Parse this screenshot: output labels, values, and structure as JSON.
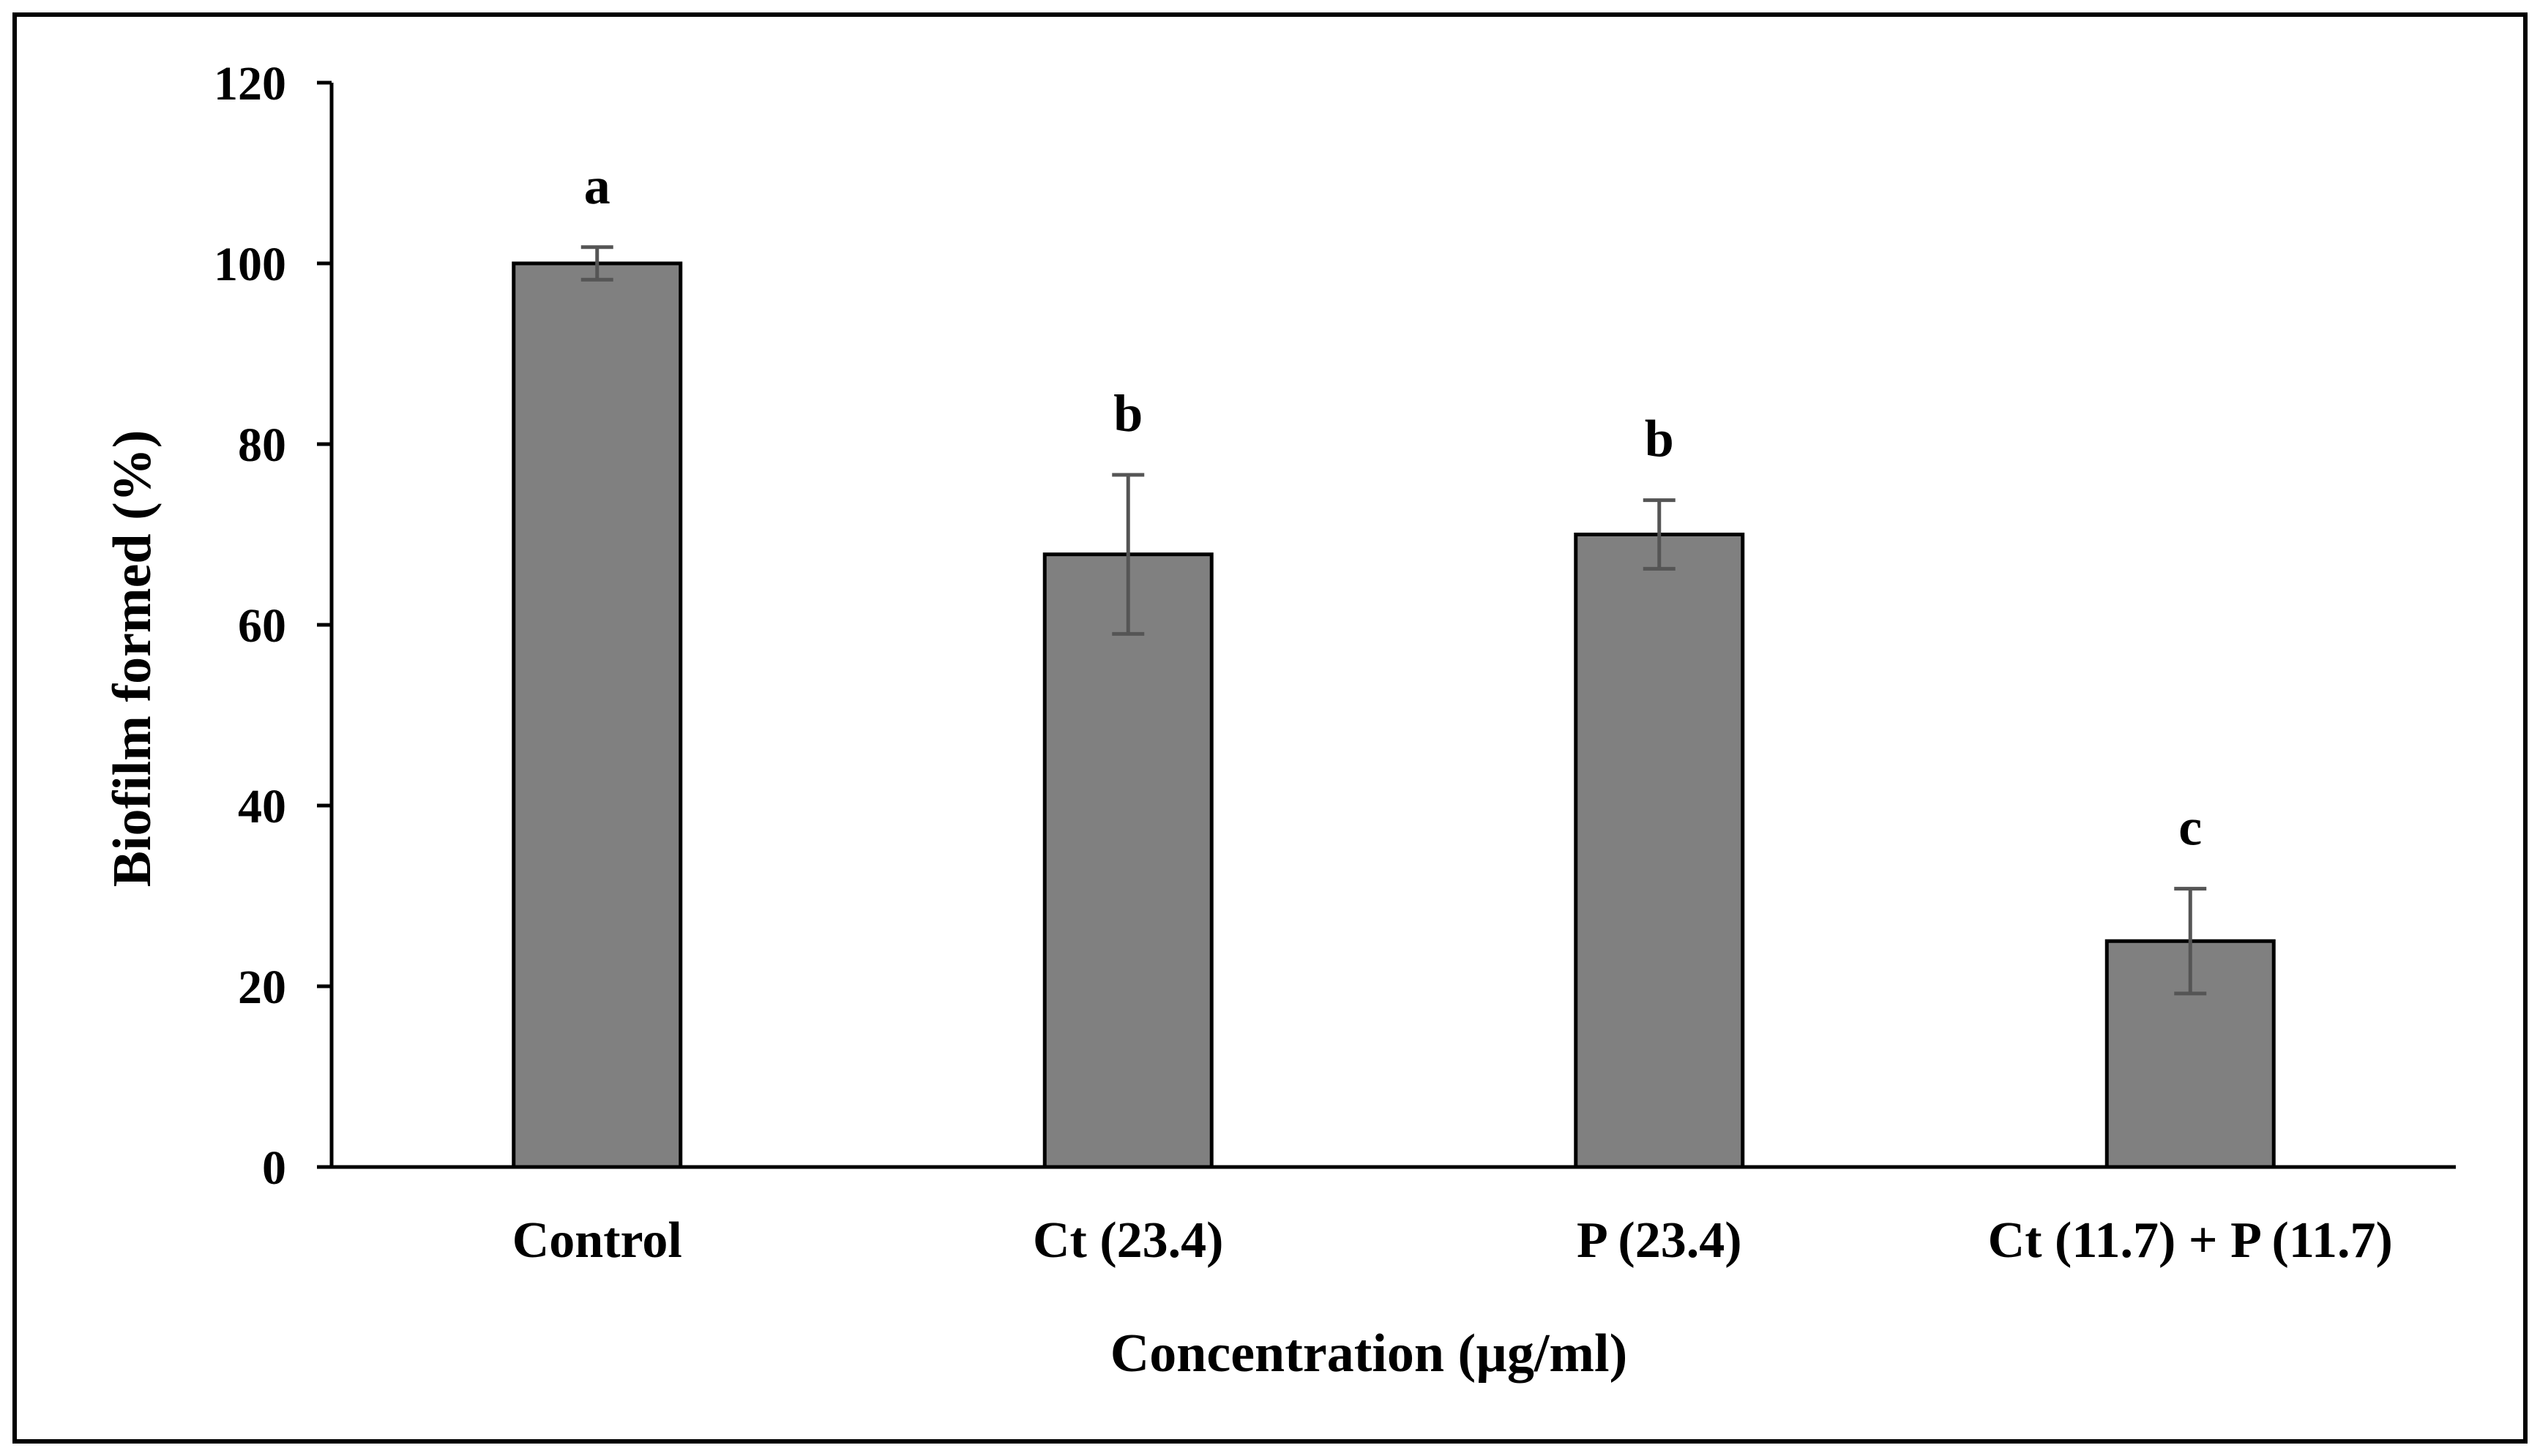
{
  "chart_data": {
    "type": "bar",
    "title": "",
    "xlabel": "Concentration (µg/ml)",
    "ylabel": "Biofilm formed (%)",
    "ylim": [
      0,
      120
    ],
    "yticks": [
      0,
      20,
      40,
      60,
      80,
      100,
      120
    ],
    "categories": [
      "Control",
      "Ct (23.4)",
      "P (23.4)",
      "Ct (11.7) + P (11.7)"
    ],
    "series": [
      {
        "name": "Biofilm formed",
        "values": [
          100,
          67.8,
          70,
          25
        ],
        "errors": [
          1.8,
          8.8,
          3.8,
          5.8
        ],
        "significance": [
          "a",
          "b",
          "b",
          "c"
        ]
      }
    ],
    "grid": false,
    "legend": "none",
    "colors": {
      "bar_fill": "#808080",
      "bar_stroke": "#000000",
      "error_bar": "#555555",
      "axis": "#000000",
      "frame": "#000000",
      "background": "#ffffff"
    }
  }
}
